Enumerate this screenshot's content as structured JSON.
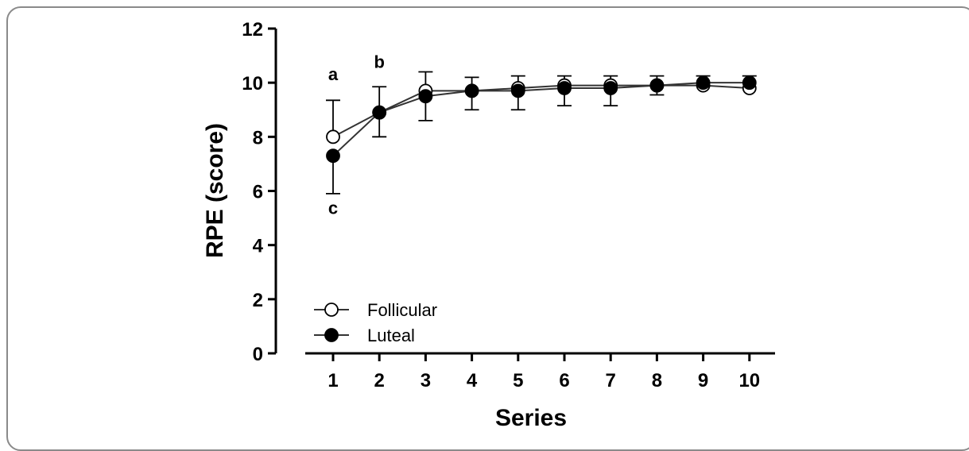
{
  "chart_data": {
    "type": "line",
    "xlabel": "Series",
    "ylabel": "RPE (score)",
    "x": [
      1,
      2,
      3,
      4,
      5,
      6,
      7,
      8,
      9,
      10
    ],
    "xlim": [
      0,
      10.5
    ],
    "ylim": [
      0,
      12
    ],
    "yticks": [
      0,
      2,
      4,
      6,
      8,
      10,
      12
    ],
    "grid": false,
    "legend_position": "bottom-left",
    "series": [
      {
        "name": "Follicular",
        "marker": "open-circle",
        "values": [
          8.0,
          8.9,
          9.7,
          9.7,
          9.8,
          9.9,
          9.9,
          9.9,
          9.9,
          9.8
        ],
        "error_up": [
          1.35,
          0.0,
          0.7,
          0.0,
          0.45,
          0.35,
          0.35,
          0.35,
          0.0,
          0.0
        ],
        "error_down": [
          0.0,
          0.0,
          0.0,
          0.0,
          0.0,
          0.0,
          0.0,
          0.0,
          0.0,
          0.0
        ]
      },
      {
        "name": "Luteal",
        "marker": "filled-circle",
        "values": [
          7.3,
          8.9,
          9.5,
          9.7,
          9.7,
          9.8,
          9.8,
          9.9,
          10.0,
          10.0
        ],
        "error_up": [
          0.0,
          0.95,
          0.0,
          0.5,
          0.0,
          0.0,
          0.0,
          0.0,
          0.25,
          0.25
        ],
        "error_down": [
          1.4,
          0.9,
          0.9,
          0.7,
          0.7,
          0.65,
          0.65,
          0.35,
          0.0,
          0.0
        ]
      }
    ],
    "annotations": [
      {
        "text": "a",
        "x": 1,
        "y": 10.1
      },
      {
        "text": "b",
        "x": 2,
        "y": 10.55
      },
      {
        "text": "c",
        "x": 1,
        "y": 5.15
      }
    ],
    "colors": {
      "line": "#333333",
      "marker_fill_filled": "#000000",
      "marker_fill_open": "#ffffff"
    }
  }
}
